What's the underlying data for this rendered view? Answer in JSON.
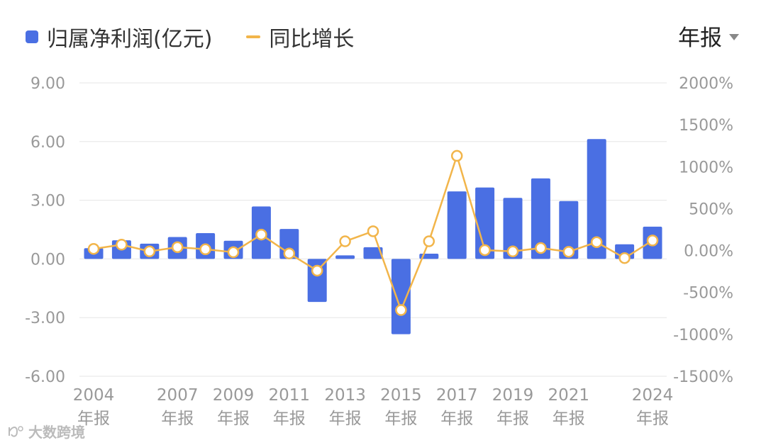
{
  "legend": {
    "bar_label": "归属净利润(亿元)",
    "line_label": "同比增长"
  },
  "period_selector": {
    "label": "年报"
  },
  "watermark": {
    "text": "大数跨境"
  },
  "colors": {
    "bar": "#4a6fe3",
    "line": "#f2b54a",
    "grid": "#e6e6e6",
    "tick": "#999999"
  },
  "chart_data": {
    "type": "bar",
    "categories": [
      "2004",
      "2005",
      "2006",
      "2007",
      "2008",
      "2009",
      "2010",
      "2011",
      "2012",
      "2013",
      "2014",
      "2015",
      "2016",
      "2017",
      "2018",
      "2019",
      "2020",
      "2021",
      "2022",
      "2023",
      "2024"
    ],
    "x_tick_labels": [
      {
        "index": 0,
        "year": "2004",
        "suffix": "年报"
      },
      {
        "index": 3,
        "year": "2007",
        "suffix": "年报"
      },
      {
        "index": 5,
        "year": "2009",
        "suffix": "年报"
      },
      {
        "index": 7,
        "year": "2011",
        "suffix": "年报"
      },
      {
        "index": 9,
        "year": "2013",
        "suffix": "年报"
      },
      {
        "index": 11,
        "year": "2015",
        "suffix": "年报"
      },
      {
        "index": 13,
        "year": "2017",
        "suffix": "年报"
      },
      {
        "index": 15,
        "year": "2019",
        "suffix": "年报"
      },
      {
        "index": 17,
        "year": "2021",
        "suffix": "年报"
      },
      {
        "index": 20,
        "year": "2024",
        "suffix": "年报"
      }
    ],
    "series": [
      {
        "name": "归属净利润(亿元)",
        "type": "bar",
        "axis": "left",
        "values": [
          0.55,
          0.95,
          0.78,
          1.12,
          1.32,
          0.93,
          2.68,
          1.53,
          -2.2,
          0.18,
          0.6,
          -3.85,
          0.27,
          3.45,
          3.65,
          3.12,
          4.12,
          2.96,
          6.13,
          0.75,
          1.65
        ]
      },
      {
        "name": "同比增长",
        "type": "line",
        "axis": "right",
        "values": [
          20,
          70,
          -10,
          40,
          15,
          -20,
          190,
          -35,
          -240,
          110,
          230,
          -710,
          110,
          1130,
          5,
          -10,
          30,
          -15,
          100,
          -90,
          120
        ]
      }
    ],
    "y_left": {
      "min": -6,
      "max": 9,
      "ticks": [
        "9.00",
        "6.00",
        "3.00",
        "0.00",
        "-3.00",
        "-6.00"
      ],
      "tick_values": [
        9,
        6,
        3,
        0,
        -3,
        -6
      ]
    },
    "y_right": {
      "min": -1500,
      "max": 2000,
      "ticks": [
        "2000%",
        "1500%",
        "1000%",
        "500%",
        "0.00%",
        "-500%",
        "-1000%",
        "-1500%"
      ],
      "tick_values": [
        2000,
        1500,
        1000,
        500,
        0,
        -500,
        -1000,
        -1500
      ]
    },
    "grid": true,
    "legend_position": "top-left"
  }
}
